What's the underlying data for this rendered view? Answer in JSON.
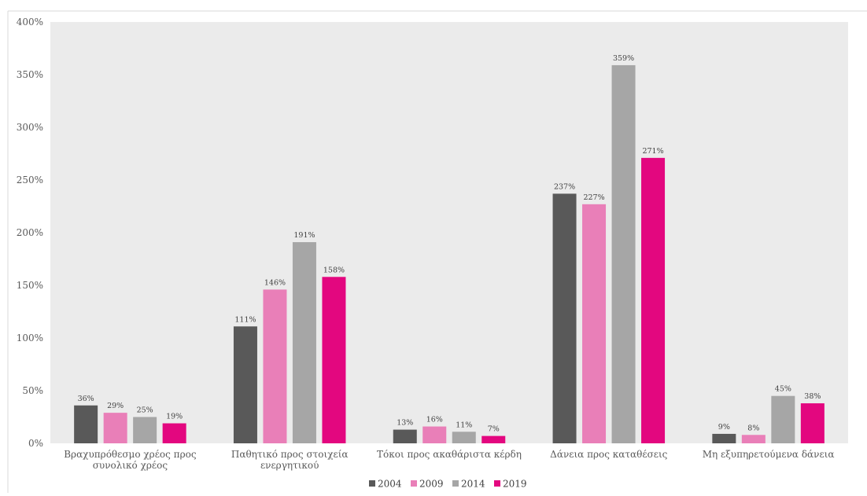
{
  "chart_data": {
    "type": "bar",
    "title": "",
    "xlabel": "",
    "ylabel": "",
    "ylim": [
      0,
      400
    ],
    "y_ticks": [
      "0%",
      "50%",
      "100%",
      "150%",
      "200%",
      "250%",
      "300%",
      "350%",
      "400%"
    ],
    "y_tick_values": [
      0,
      50,
      100,
      150,
      200,
      250,
      300,
      350,
      400
    ],
    "grid": false,
    "legend_position": "bottom",
    "categories": [
      [
        "Βραχυπρόθεσμο χρέος προς",
        "συνολικό χρέος"
      ],
      [
        "Παθητικό προς στοιχεία",
        "ενεργητικού"
      ],
      [
        "Τόκοι προς ακαθάριστα κέρδη"
      ],
      [
        "Δάνεια προς καταθέσεις"
      ],
      [
        "Μη εξυπηρετούμενα δάνεια"
      ]
    ],
    "series": [
      {
        "name": "2004",
        "color": "#595959",
        "values": [
          36,
          111,
          13,
          237,
          9
        ],
        "labels": [
          "36%",
          "111%",
          "13%",
          "237%",
          "9%"
        ]
      },
      {
        "name": "2009",
        "color": "#e97fb8",
        "values": [
          29,
          146,
          16,
          227,
          8
        ],
        "labels": [
          "29%",
          "146%",
          "16%",
          "227%",
          "8%"
        ]
      },
      {
        "name": "2014",
        "color": "#a6a6a6",
        "values": [
          25,
          191,
          11,
          359,
          45
        ],
        "labels": [
          "25%",
          "191%",
          "11%",
          "359%",
          "45%"
        ]
      },
      {
        "name": "2019",
        "color": "#e3077f",
        "values": [
          19,
          158,
          7,
          271,
          38
        ],
        "labels": [
          "19%",
          "158%",
          "7%",
          "271%",
          "38%"
        ]
      }
    ]
  }
}
